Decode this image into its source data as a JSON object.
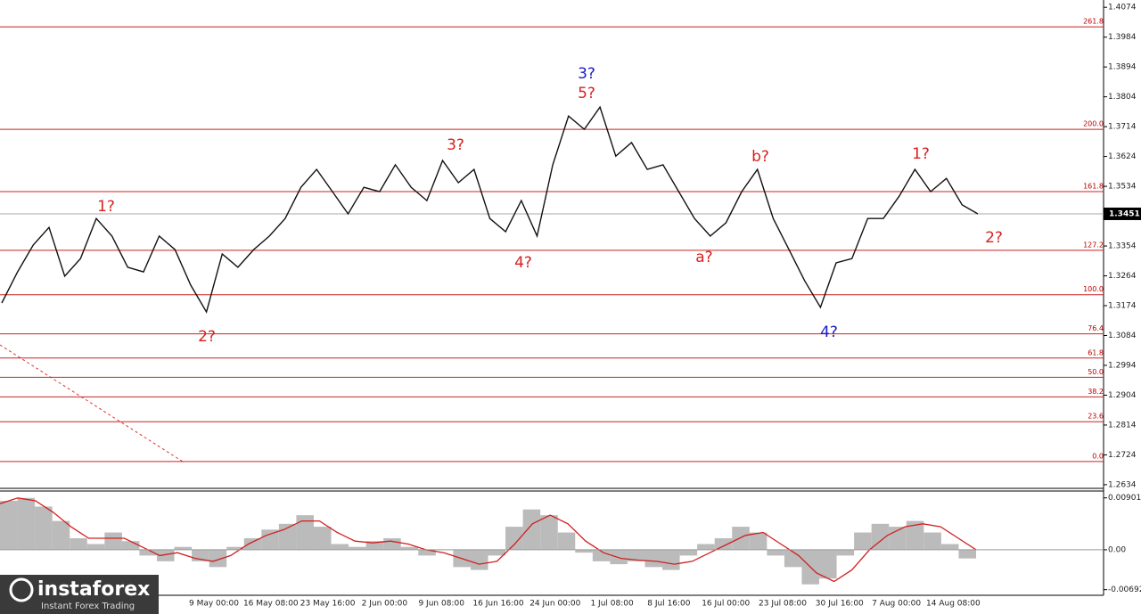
{
  "price_axis": {
    "ylim": [
      1.2623,
      1.4096
    ],
    "yticks": [
      1.4074,
      1.3984,
      1.3894,
      1.3804,
      1.3714,
      1.3624,
      1.3534,
      1.3354,
      1.3264,
      1.3174,
      1.3084,
      1.2994,
      1.2904,
      1.2814,
      1.2724,
      1.2634
    ],
    "current_price": 1.3451
  },
  "price_series": [
    1.3182,
    1.3276,
    1.3357,
    1.341,
    1.3263,
    1.3316,
    1.3437,
    1.3384,
    1.329,
    1.3276,
    1.3384,
    1.3343,
    1.3236,
    1.3155,
    1.333,
    1.329,
    1.3343,
    1.3384,
    1.3437,
    1.3531,
    1.3585,
    1.3518,
    1.3451,
    1.3531,
    1.3518,
    1.3599,
    1.3531,
    1.3491,
    1.3612,
    1.3545,
    1.3585,
    1.3437,
    1.3397,
    1.3491,
    1.3384,
    1.3599,
    1.3746,
    1.3706,
    1.3773,
    1.3625,
    1.3666,
    1.3585,
    1.3599,
    1.3518,
    1.3437,
    1.3384,
    1.3424,
    1.3518,
    1.3585,
    1.3437,
    1.3343,
    1.3249,
    1.3169,
    1.3303,
    1.3316,
    1.3437,
    1.3437,
    1.3504,
    1.3585,
    1.3518,
    1.3558,
    1.3478,
    1.3451
  ],
  "fib_levels": [
    {
      "label": "261.8",
      "price": 1.4015
    },
    {
      "label": "200.0",
      "price": 1.3706
    },
    {
      "label": "161.8",
      "price": 1.3518
    },
    {
      "label": "127.2",
      "price": 1.3341
    },
    {
      "label": "100.0",
      "price": 1.3207
    },
    {
      "label": "76.4",
      "price": 1.3089
    },
    {
      "label": "61.8",
      "price": 1.3016
    },
    {
      "label": "50.0",
      "price": 1.2958
    },
    {
      "label": "38.2",
      "price": 1.2899
    },
    {
      "label": "23.6",
      "price": 1.2824
    },
    {
      "label": "0.0",
      "price": 1.2704
    }
  ],
  "wave_labels": [
    "1?",
    "2?",
    "3?",
    "4?",
    "3?",
    "5?",
    "a?",
    "b?",
    "4?",
    "1?",
    "2?"
  ],
  "oscillator": {
    "ylim": [
      -0.0079,
      0.0102
    ],
    "yticks": [
      0.00901,
      {
        "value": 0,
        "label": "0.00"
      },
      -0.00692
    ],
    "histogram": [
      0.0085,
      0.009,
      0.0075,
      0.005,
      0.002,
      0.001,
      0.003,
      0.0015,
      -0.001,
      -0.002,
      0.0005,
      -0.002,
      -0.003,
      0.0005,
      0.002,
      0.0035,
      0.0045,
      0.006,
      0.004,
      0.001,
      0.0005,
      0.0015,
      0.002,
      0.0005,
      -0.001,
      0,
      -0.003,
      -0.0035,
      -0.001,
      0.004,
      0.007,
      0.006,
      0.003,
      -0.0005,
      -0.002,
      -0.0025,
      -0.002,
      -0.003,
      -0.0035,
      -0.001,
      0.001,
      0.002,
      0.004,
      0.003,
      -0.001,
      -0.003,
      -0.006,
      -0.005,
      -0.001,
      0.003,
      0.0045,
      0.004,
      0.005,
      0.003,
      0.001,
      -0.0015
    ],
    "signal": [
      0.008,
      0.009,
      0.0085,
      0.0065,
      0.004,
      0.002,
      0.002,
      0.002,
      0.0005,
      -0.001,
      -0.0005,
      -0.0015,
      -0.002,
      -0.001,
      0.001,
      0.0025,
      0.0035,
      0.005,
      0.005,
      0.003,
      0.0015,
      0.0012,
      0.0015,
      0.001,
      0,
      -0.0005,
      -0.0015,
      -0.0025,
      -0.002,
      0.001,
      0.0045,
      0.006,
      0.0045,
      0.0015,
      -0.0005,
      -0.0015,
      -0.0018,
      -0.002,
      -0.0025,
      -0.002,
      -0.0005,
      0.001,
      0.0025,
      0.003,
      0.001,
      -0.001,
      -0.004,
      -0.0055,
      -0.0035,
      0,
      0.0025,
      0.004,
      0.0045,
      0.004,
      0.002,
      0
    ]
  },
  "dates": [
    "9 May 00:00",
    "16 May 08:00",
    "23 May 16:00",
    "2 Jun 00:00",
    "9 Jun 08:00",
    "16 Jun 16:00",
    "24 Jun 00:00",
    "1 Jul 08:00",
    "8 Jul 16:00",
    "16 Jul 00:00",
    "23 Jul 08:00",
    "30 Jul 16:00",
    "7 Aug 00:00",
    "14 Aug 08:00"
  ],
  "logo": {
    "name": "instaforex",
    "tagline": "Instant Forex Trading"
  }
}
